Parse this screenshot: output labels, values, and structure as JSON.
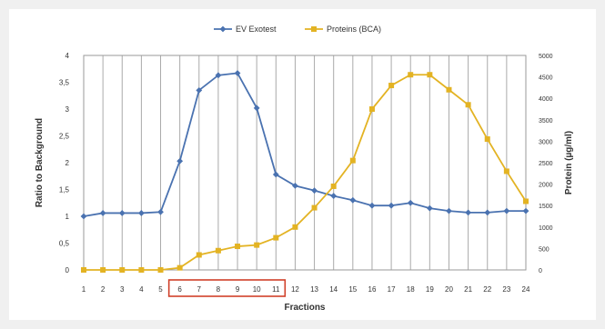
{
  "chart_data": {
    "type": "line",
    "xlabel": "Fractions",
    "ylabel_left": "Ratio to Background",
    "ylabel_right": "Protein (µg/ml)",
    "categories": [
      "1",
      "2",
      "3",
      "4",
      "5",
      "6",
      "7",
      "8",
      "9",
      "10",
      "11",
      "12",
      "13",
      "14",
      "15",
      "16",
      "17",
      "18",
      "19",
      "20",
      "21",
      "22",
      "23",
      "24"
    ],
    "highlighted_categories": [
      "6",
      "7",
      "8",
      "9",
      "10",
      "11"
    ],
    "left_axis": {
      "min": 0,
      "max": 4,
      "ticks": [
        "0",
        "0,5",
        "1",
        "1,5",
        "2",
        "2,5",
        "3",
        "3,5",
        "4"
      ]
    },
    "right_axis": {
      "min": 0,
      "max": 5000,
      "ticks": [
        "0",
        "500",
        "1000",
        "1500",
        "2000",
        "2500",
        "3000",
        "3500",
        "4000",
        "4500",
        "5000"
      ]
    },
    "grid": "vertical",
    "legend_position": "top",
    "series": [
      {
        "name": "EV Exotest",
        "axis": "left",
        "color": "#4a72b0",
        "marker": "diamond",
        "values": [
          1.0,
          1.06,
          1.06,
          1.06,
          1.08,
          2.03,
          3.35,
          3.63,
          3.67,
          3.02,
          1.78,
          1.57,
          1.48,
          1.38,
          1.3,
          1.2,
          1.2,
          1.25,
          1.15,
          1.1,
          1.07,
          1.07,
          1.1,
          1.1
        ]
      },
      {
        "name": "Proteins (BCA)",
        "axis": "right",
        "color": "#e3b323",
        "marker": "square",
        "values": [
          0,
          0,
          0,
          0,
          0,
          50,
          350,
          450,
          550,
          580,
          750,
          1000,
          1450,
          1950,
          2550,
          3750,
          4300,
          4550,
          4550,
          4200,
          3850,
          3050,
          2300,
          1600
        ]
      }
    ]
  }
}
